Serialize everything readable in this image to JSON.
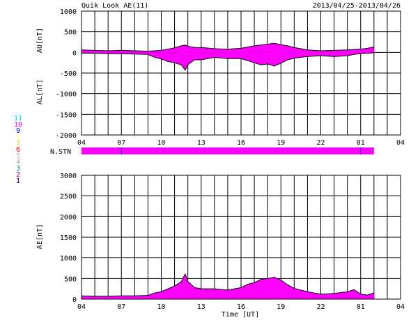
{
  "header": {
    "title": "Quik Look AE(11)",
    "date_range": "2013/04/25-2013/04/26"
  },
  "time_axis_label": "Time [UT]",
  "nstn_label": "N.STN",
  "station_legend": [
    {
      "label": "11",
      "color": "#00e0e0"
    },
    {
      "label": "10",
      "color": "#ff00ff"
    },
    {
      "label": "9",
      "color": "#0000ff"
    },
    {
      "label": "8",
      "color": "#ffff80"
    },
    {
      "label": "7",
      "color": "#ffd000"
    },
    {
      "label": "6",
      "color": "#ff0000"
    },
    {
      "label": "5",
      "color": "#c0c0c0"
    },
    {
      "label": "4",
      "color": "#a0a0a0"
    },
    {
      "label": "3",
      "color": "#008080"
    },
    {
      "label": "2",
      "color": "#800080"
    },
    {
      "label": "1",
      "color": "#000080"
    }
  ],
  "colors": {
    "fill": "#ff00ff",
    "line": "#000000",
    "grid": "#000000"
  },
  "chart_data": [
    {
      "type": "area",
      "ylabel_top": "AU[nT]",
      "ylabel_bottom": "AL[nT]",
      "ylim": [
        -2000,
        1000
      ],
      "yticks": [
        "1000",
        "500",
        "0",
        "-500",
        "-1000",
        "-1500",
        "-2000"
      ],
      "ytick_values": [
        1000,
        500,
        0,
        -500,
        -1000,
        -1500,
        -2000
      ],
      "xticks": [
        "04",
        "07",
        "10",
        "13",
        "16",
        "19",
        "22",
        "01",
        "04"
      ],
      "xlim_hours": [
        4,
        28
      ],
      "x_hours": [
        4,
        5,
        6,
        7,
        8,
        9,
        9.5,
        10,
        10.5,
        11,
        11.5,
        11.8,
        12,
        12.5,
        13,
        14,
        15,
        16,
        16.5,
        17,
        17.5,
        18,
        18.5,
        19,
        19.5,
        20,
        21,
        22,
        23,
        24,
        24.5,
        25,
        25.5,
        26
      ],
      "series": [
        {
          "values": [
            60,
            50,
            40,
            50,
            40,
            30,
            40,
            50,
            80,
            110,
            160,
            180,
            150,
            120,
            120,
            90,
            80,
            100,
            130,
            160,
            180,
            200,
            220,
            190,
            160,
            120,
            60,
            40,
            50,
            60,
            70,
            80,
            100,
            130
          ]
        },
        {
          "values": [
            -20,
            -20,
            -30,
            -30,
            -40,
            -50,
            -120,
            -160,
            -220,
            -250,
            -300,
            -430,
            -300,
            -180,
            -180,
            -120,
            -150,
            -150,
            -200,
            -250,
            -300,
            -280,
            -330,
            -260,
            -180,
            -140,
            -100,
            -80,
            -100,
            -80,
            -50,
            -30,
            -20,
            -10
          ]
        }
      ]
    },
    {
      "type": "bar",
      "label": "N.STN",
      "xlim_hours": [
        4,
        28
      ],
      "span_hours": [
        4,
        26
      ],
      "marks_hours": [
        7,
        25
      ]
    },
    {
      "type": "area",
      "ylabel": "AE[nT]",
      "ylim": [
        0,
        3000
      ],
      "yticks": [
        "3000",
        "2500",
        "2000",
        "1500",
        "1000",
        "500",
        "0"
      ],
      "ytick_values": [
        3000,
        2500,
        2000,
        1500,
        1000,
        500,
        0
      ],
      "xticks": [
        "04",
        "07",
        "10",
        "13",
        "16",
        "19",
        "22",
        "01",
        "04"
      ],
      "xlim_hours": [
        4,
        28
      ],
      "x_hours": [
        4,
        5,
        6,
        7,
        8,
        9,
        9.5,
        10,
        10.5,
        11,
        11.5,
        11.8,
        12,
        12.5,
        13,
        14,
        15,
        16,
        16.5,
        17,
        17.5,
        18,
        18.5,
        19,
        19.5,
        20,
        21,
        22,
        23,
        24,
        24.5,
        25,
        25.5,
        26
      ],
      "series": [
        {
          "values": [
            80,
            70,
            70,
            80,
            80,
            90,
            150,
            180,
            250,
            320,
            420,
            610,
            430,
            280,
            250,
            250,
            220,
            280,
            360,
            400,
            480,
            500,
            530,
            460,
            350,
            260,
            180,
            120,
            140,
            180,
            230,
            120,
            100,
            150
          ]
        }
      ]
    }
  ]
}
